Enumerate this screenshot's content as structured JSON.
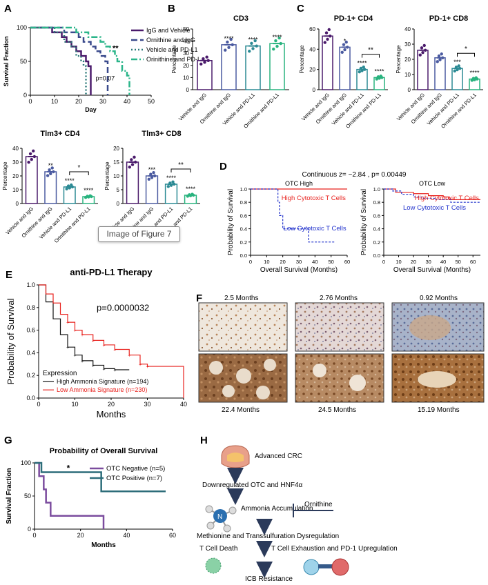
{
  "panel_letters": [
    "A",
    "B",
    "C",
    "D",
    "E",
    "F",
    "G",
    "H"
  ],
  "tooltip": "Image of Figure 7",
  "chart_data": [
    {
      "id": "A",
      "type": "line",
      "ylabel": "Survival Fraction",
      "xlabel": "Day",
      "xlim": [
        0,
        50
      ],
      "ylim": [
        0,
        100
      ],
      "xticks": [
        0,
        10,
        20,
        30,
        40,
        50
      ],
      "yticks": [
        0,
        50,
        100
      ],
      "annotations": [
        "**",
        "p=0.07"
      ],
      "series": [
        {
          "name": "IgG and Vehicle",
          "color": "#4a1a6b",
          "x": [
            0,
            9,
            13,
            15,
            17,
            19,
            21,
            23,
            24,
            25
          ],
          "y": [
            100,
            93,
            86,
            79,
            72,
            65,
            58,
            50,
            43,
            0
          ]
        },
        {
          "name": "Ornithine and IgG",
          "color": "#3a4a8c",
          "x": [
            0,
            14,
            20,
            22,
            25,
            27,
            29,
            31,
            32
          ],
          "y": [
            100,
            93,
            86,
            79,
            72,
            65,
            58,
            50,
            0
          ]
        },
        {
          "name": "Vehicle and PD-L1",
          "color": "#2e7a7a",
          "x": [
            0,
            10,
            14,
            17,
            19,
            21,
            22,
            23
          ],
          "y": [
            100,
            93,
            79,
            72,
            58,
            50,
            43,
            0
          ]
        },
        {
          "name": "Orinithine and PD-L1",
          "color": "#2bb58a",
          "x": [
            0,
            19,
            24,
            29,
            31,
            33,
            35,
            36,
            38,
            40,
            41
          ],
          "y": [
            100,
            93,
            86,
            79,
            72,
            65,
            58,
            50,
            36,
            29,
            0
          ]
        }
      ]
    },
    {
      "id": "B",
      "type": "bar",
      "title": "CD3",
      "ylabel": "Percentage",
      "categories": [
        "Vehicle and IgG",
        "Ornithine and IgG",
        "Vehicle and PD-L1",
        "Ornithine and PD-L1"
      ],
      "values": [
        24,
        37,
        36,
        38
      ],
      "ylim": [
        0,
        50
      ],
      "yticks": [
        0,
        10,
        20,
        30,
        40,
        50
      ],
      "stars": [
        "",
        "****",
        "****",
        "****"
      ]
    },
    {
      "id": "C1",
      "type": "bar",
      "title": "PD-1+ CD4",
      "ylabel": "Percentage",
      "categories": [
        "Vehicle and IgG",
        "Ornithine and IgG",
        "Vehicle and PD-L1",
        "Ornithine and PD-L1"
      ],
      "values": [
        53,
        42,
        20,
        12
      ],
      "ylim": [
        0,
        60
      ],
      "yticks": [
        0,
        20,
        40,
        60
      ],
      "stars": [
        "",
        "*",
        "****",
        "****"
      ],
      "bracket_label": "**"
    },
    {
      "id": "C2",
      "type": "bar",
      "title": "PD-1+ CD8",
      "ylabel": "Percentage",
      "categories": [
        "Vehicle and IgG",
        "Ornithine and IgG",
        "Vehicle and PD-L1",
        "Ornithine and PD-L1"
      ],
      "values": [
        26,
        21,
        14,
        7
      ],
      "ylim": [
        0,
        40
      ],
      "yticks": [
        0,
        10,
        20,
        30,
        40
      ],
      "stars": [
        "",
        "",
        "***",
        "****"
      ],
      "bracket_label": "*"
    },
    {
      "id": "TIM4",
      "type": "bar",
      "title": "Tlm3+ CD4",
      "ylabel": "Percentage",
      "categories": [
        "Vehicle and IgG",
        "Ornithine and IgG",
        "Vehicle and PD-L1",
        "Orinithine and PD-L1"
      ],
      "values": [
        34,
        23,
        12,
        5
      ],
      "ylim": [
        0,
        40
      ],
      "yticks": [
        0,
        10,
        20,
        30,
        40
      ],
      "stars": [
        "",
        "**",
        "****",
        "****"
      ],
      "bracket_label": "*"
    },
    {
      "id": "TIM8",
      "type": "bar",
      "title": "Tlm3+ CD8",
      "ylabel": "Percentage",
      "categories": [
        "Vehicle and IgG",
        "Ornithine and IgG",
        "Vehicle and PD-L1",
        "Ornithine and PD-L1"
      ],
      "values": [
        15,
        10,
        7,
        3
      ],
      "ylim": [
        0,
        20
      ],
      "yticks": [
        0,
        5,
        10,
        15,
        20
      ],
      "stars": [
        "",
        "***",
        "****",
        "****"
      ],
      "bracket_label": "**"
    },
    {
      "id": "D",
      "type": "line",
      "title": "Continuous z= −2.84 , p= 0.00449",
      "subplots": [
        {
          "title": "OTC High",
          "ylabel": "Probability of Survival",
          "xlabel": "Overall Survival (Months)",
          "xlim": [
            0,
            60
          ],
          "ylim": [
            0,
            1
          ],
          "xticks": [
            0,
            10,
            20,
            30,
            40,
            50,
            60
          ],
          "yticks": [
            0.0,
            0.2,
            0.4,
            0.6,
            0.8,
            1.0
          ],
          "series": [
            {
              "name": "High Cytotoxic T Cells",
              "color": "#e8231f",
              "x": [
                0,
                60
              ],
              "y": [
                1.0,
                1.0
              ]
            },
            {
              "name": "Low Cytotoxic T Cells",
              "color": "#2233cc",
              "x": [
                0,
                16,
                17,
                18,
                20,
                34,
                36,
                52
              ],
              "y": [
                1.0,
                1.0,
                0.8,
                0.6,
                0.4,
                0.4,
                0.2,
                0.2
              ]
            }
          ]
        },
        {
          "title": "OTC Low",
          "ylabel": "Probability of Survival",
          "xlabel": "Overall Survival (Months)",
          "xlim": [
            0,
            65
          ],
          "ylim": [
            0,
            1
          ],
          "xticks": [
            0,
            10,
            20,
            30,
            40,
            50,
            60
          ],
          "yticks": [
            0.0,
            0.2,
            0.4,
            0.6,
            0.8,
            1.0
          ],
          "series": [
            {
              "name": "High Cytotoxic T Cells",
              "color": "#e8231f",
              "x": [
                0,
                8,
                20,
                30,
                40,
                44,
                65
              ],
              "y": [
                1.0,
                0.95,
                0.93,
                0.9,
                0.88,
                0.84,
                0.84
              ]
            },
            {
              "name": "Low Cytotoxic T Cells",
              "color": "#2233cc",
              "x": [
                0,
                6,
                12,
                20,
                26,
                35,
                45,
                65
              ],
              "y": [
                1.0,
                0.97,
                0.92,
                0.88,
                0.86,
                0.84,
                0.8,
                0.8
              ]
            }
          ]
        }
      ]
    },
    {
      "id": "E",
      "type": "line",
      "title": "anti-PD-L1 Therapy",
      "ylabel": "Probability of Survival",
      "xlabel": "Months",
      "xlim": [
        0,
        40
      ],
      "ylim": [
        0,
        1
      ],
      "xticks": [
        0,
        10,
        20,
        30,
        40
      ],
      "yticks": [
        0.0,
        0.2,
        0.4,
        0.6,
        0.8,
        1.0
      ],
      "annotation": "p=0.0000032",
      "legend_title": "Expression",
      "series": [
        {
          "name": "High Ammonia Signature  (n=194)",
          "color": "#111111",
          "x": [
            0,
            2,
            4,
            6,
            8,
            10,
            12,
            15,
            18,
            21,
            25
          ],
          "y": [
            1.0,
            0.85,
            0.7,
            0.56,
            0.45,
            0.38,
            0.33,
            0.29,
            0.26,
            0.25,
            0.25
          ]
        },
        {
          "name": "Low Ammonia Signature (n=230)",
          "color": "#e8231f",
          "x": [
            0,
            2,
            4,
            6,
            8,
            10,
            12,
            15,
            18,
            21,
            25,
            28,
            30,
            40
          ],
          "y": [
            1.0,
            0.92,
            0.84,
            0.74,
            0.67,
            0.6,
            0.56,
            0.51,
            0.47,
            0.43,
            0.38,
            0.3,
            0.28,
            0.0
          ]
        }
      ]
    },
    {
      "id": "G",
      "type": "line",
      "title": "Probability of Overall Survival",
      "ylabel": "Survival Fraction",
      "xlabel": "Months",
      "xlim": [
        0,
        60
      ],
      "ylim": [
        0,
        100
      ],
      "xticks": [
        0,
        20,
        40,
        60
      ],
      "yticks": [
        0,
        50,
        100
      ],
      "annotation": "*",
      "series": [
        {
          "name": "OTC Negative (n=5)",
          "color": "#7b4c9e",
          "x": [
            0,
            2,
            4,
            5,
            7,
            30
          ],
          "y": [
            100,
            80,
            60,
            40,
            20,
            0
          ]
        },
        {
          "name": "OTC Positive (n=7)",
          "color": "#2d6d7a",
          "x": [
            0,
            3,
            29,
            57
          ],
          "y": [
            100,
            86,
            57,
            57
          ]
        }
      ]
    }
  ],
  "figF": {
    "labels_top": [
      "2.5 Months",
      "2.76 Months",
      "0.92 Months"
    ],
    "labels_bottom": [
      "22.4 Months",
      "24.5 Months",
      "15.19 Months"
    ]
  },
  "figH": {
    "steps": [
      "Advanced CRC",
      "Downregulated OTC and HNF4α",
      "Ammonia Accumulation",
      "Ornithine",
      "Methionine and Transsulfuration Dysregulation",
      "T Cell Death",
      "T Cell Exhaustion and PD-1 Upregulation",
      "ICB Resistance"
    ]
  }
}
